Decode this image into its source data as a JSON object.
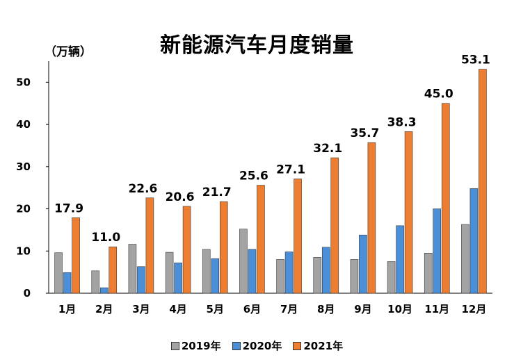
{
  "page": {
    "title": "新能源汽车月度销量",
    "unit": "（万辆）"
  },
  "colors": {
    "2019": "#a3a3a3",
    "2020": "#4a8fd8",
    "2021": "#ed7d31",
    "axis": "#000000"
  },
  "chart_data": {
    "type": "bar",
    "title": "新能源汽车月度销量",
    "ylabel": "（万辆）",
    "xlabel": "",
    "ylim": [
      0,
      55
    ],
    "yticks": [
      0,
      10,
      20,
      30,
      40,
      50
    ],
    "grid": false,
    "legend_position": "bottom",
    "categories": [
      "1月",
      "2月",
      "3月",
      "4月",
      "5月",
      "6月",
      "7月",
      "8月",
      "9月",
      "10月",
      "11月",
      "12月"
    ],
    "series": [
      {
        "name": "2019年",
        "values": [
          9.6,
          5.3,
          11.6,
          9.7,
          10.4,
          15.2,
          8.0,
          8.5,
          8.0,
          7.5,
          9.5,
          16.3
        ]
      },
      {
        "name": "2020年",
        "values": [
          4.9,
          1.3,
          6.3,
          7.2,
          8.2,
          10.4,
          9.8,
          10.9,
          13.8,
          16.0,
          20.0,
          24.8
        ]
      },
      {
        "name": "2021年",
        "values": [
          17.9,
          11.0,
          22.6,
          20.6,
          21.7,
          25.6,
          27.1,
          32.1,
          35.7,
          38.3,
          45.0,
          53.1
        ]
      }
    ],
    "data_labels": [
      "17.9",
      "11.0",
      "22.6",
      "20.6",
      "21.7",
      "25.6",
      "27.1",
      "32.1",
      "35.7",
      "38.3",
      "45.0",
      "53.1"
    ]
  }
}
